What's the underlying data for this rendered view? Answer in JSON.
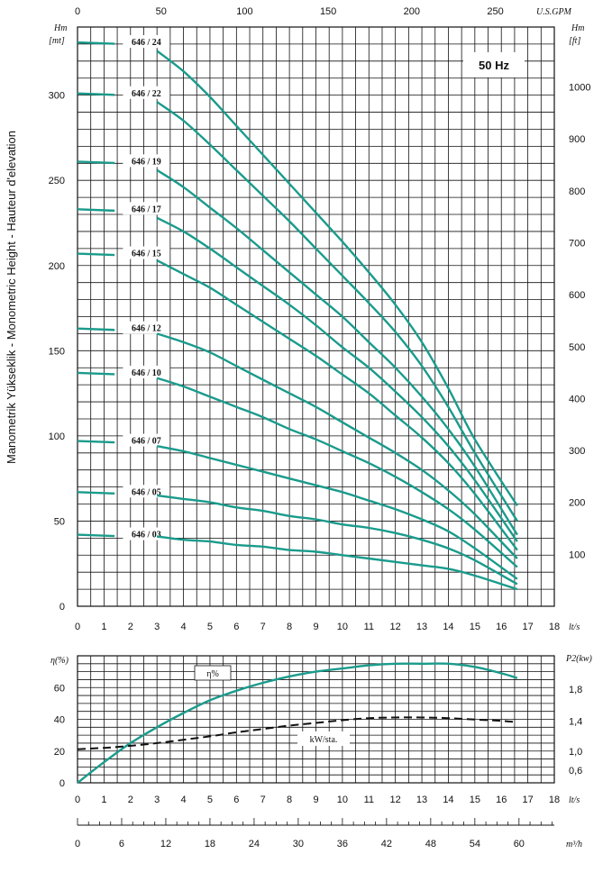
{
  "chart_data": [
    {
      "type": "line",
      "title": "",
      "frequency_label": "50 Hz",
      "ylabel_side": "Manometrik Yükseklik - Monometric Height - Hauteur d'elevation",
      "ylabel_left": [
        "Hm",
        "[mt]"
      ],
      "ylabel_right": [
        "Hm",
        "[ft]"
      ],
      "xlabel_top": "U.S.GPM",
      "xlabel_bottom": "lt/s",
      "xlim": [
        0,
        18
      ],
      "ylim": [
        0,
        340
      ],
      "x_ticks": [
        0,
        1,
        2,
        3,
        4,
        5,
        6,
        7,
        8,
        9,
        10,
        11,
        12,
        13,
        14,
        15,
        16,
        17,
        18
      ],
      "y_ticks": [
        0,
        50,
        100,
        150,
        200,
        250,
        300
      ],
      "gpm_ticks": [
        0,
        50,
        100,
        150,
        200,
        250
      ],
      "ft_ticks": [
        100,
        200,
        300,
        400,
        500,
        600,
        700,
        800,
        900,
        1000
      ],
      "grid": true,
      "series": [
        {
          "name": "646 / 24",
          "lead_y": 331,
          "points": [
            [
              3.0,
              326
            ],
            [
              4,
              314
            ],
            [
              5,
              299
            ],
            [
              6,
              282
            ],
            [
              7,
              265
            ],
            [
              8,
              248
            ],
            [
              9,
              231
            ],
            [
              10,
              214
            ],
            [
              11,
              196
            ],
            [
              12,
              177
            ],
            [
              13,
              155
            ],
            [
              14,
              128
            ],
            [
              15,
              98
            ],
            [
              16.6,
              59
            ]
          ]
        },
        {
          "name": "646 / 22",
          "lead_y": 301,
          "points": [
            [
              3.0,
              296
            ],
            [
              4,
              285
            ],
            [
              5,
              271
            ],
            [
              6,
              256
            ],
            [
              7,
              241
            ],
            [
              8,
              226
            ],
            [
              9,
              210
            ],
            [
              10,
              194
            ],
            [
              11,
              178
            ],
            [
              12,
              161
            ],
            [
              13,
              141
            ],
            [
              14,
              117
            ],
            [
              15,
              90
            ],
            [
              16.6,
              50
            ]
          ]
        },
        {
          "name": "646 / 19",
          "lead_y": 261,
          "points": [
            [
              3.0,
              256
            ],
            [
              4,
              246
            ],
            [
              5,
              234
            ],
            [
              6,
              222
            ],
            [
              7,
              209
            ],
            [
              8,
              196
            ],
            [
              9,
              183
            ],
            [
              10,
              170
            ],
            [
              11,
              155
            ],
            [
              12,
              140
            ],
            [
              13,
              123
            ],
            [
              14,
              104
            ],
            [
              15,
              82
            ],
            [
              16.6,
              42
            ]
          ]
        },
        {
          "name": "646 / 17",
          "lead_y": 233,
          "points": [
            [
              3.0,
              228
            ],
            [
              4,
              220
            ],
            [
              5,
              210
            ],
            [
              6,
              199
            ],
            [
              7,
              188
            ],
            [
              8,
              177
            ],
            [
              9,
              165
            ],
            [
              10,
              152
            ],
            [
              11,
              140
            ],
            [
              12,
              126
            ],
            [
              13,
              111
            ],
            [
              14,
              94
            ],
            [
              15,
              74
            ],
            [
              16.6,
              38
            ]
          ]
        },
        {
          "name": "646 / 15",
          "lead_y": 207,
          "points": [
            [
              3.0,
              203
            ],
            [
              4,
              195
            ],
            [
              5,
              187
            ],
            [
              6,
              177
            ],
            [
              7,
              167
            ],
            [
              8,
              157
            ],
            [
              9,
              147
            ],
            [
              10,
              136
            ],
            [
              11,
              125
            ],
            [
              12,
              112
            ],
            [
              13,
              99
            ],
            [
              14,
              84
            ],
            [
              15,
              66
            ],
            [
              16.6,
              33
            ]
          ]
        },
        {
          "name": "646 / 12",
          "lead_y": 163,
          "points": [
            [
              3.0,
              160
            ],
            [
              4,
              155
            ],
            [
              5,
              149
            ],
            [
              6,
              141
            ],
            [
              7,
              133
            ],
            [
              8,
              125
            ],
            [
              9,
              117
            ],
            [
              10,
              108
            ],
            [
              11,
              99
            ],
            [
              12,
              90
            ],
            [
              13,
              80
            ],
            [
              14,
              68
            ],
            [
              15,
              54
            ],
            [
              16.6,
              28
            ]
          ]
        },
        {
          "name": "646 / 10",
          "lead_y": 137,
          "points": [
            [
              3.0,
              134
            ],
            [
              4,
              129
            ],
            [
              5,
              123
            ],
            [
              6,
              117
            ],
            [
              7,
              111
            ],
            [
              8,
              104
            ],
            [
              9,
              98
            ],
            [
              10,
              91
            ],
            [
              11,
              84
            ],
            [
              12,
              76
            ],
            [
              13,
              67
            ],
            [
              14,
              57
            ],
            [
              15,
              45
            ],
            [
              16.6,
              23
            ]
          ]
        },
        {
          "name": "646 / 07",
          "lead_y": 97,
          "points": [
            [
              3.0,
              94
            ],
            [
              4,
              91
            ],
            [
              5,
              87
            ],
            [
              6,
              83
            ],
            [
              7,
              79
            ],
            [
              8,
              75
            ],
            [
              9,
              71
            ],
            [
              10,
              67
            ],
            [
              11,
              62
            ],
            [
              12,
              57
            ],
            [
              13,
              51
            ],
            [
              14,
              44
            ],
            [
              15,
              34
            ],
            [
              16.6,
              16
            ]
          ]
        },
        {
          "name": "646 / 05",
          "lead_y": 67,
          "points": [
            [
              3.0,
              65
            ],
            [
              4,
              63
            ],
            [
              5,
              61
            ],
            [
              6,
              58
            ],
            [
              7,
              56
            ],
            [
              8,
              53
            ],
            [
              9,
              51
            ],
            [
              10,
              48
            ],
            [
              11,
              46
            ],
            [
              12,
              43
            ],
            [
              13,
              39
            ],
            [
              14,
              34
            ],
            [
              15,
              27
            ],
            [
              16.6,
              13
            ]
          ]
        },
        {
          "name": "646 / 03",
          "lead_y": 42,
          "points": [
            [
              3.0,
              41
            ],
            [
              4,
              39
            ],
            [
              5,
              38
            ],
            [
              6,
              36
            ],
            [
              7,
              35
            ],
            [
              8,
              33
            ],
            [
              9,
              32
            ],
            [
              10,
              30
            ],
            [
              11,
              28
            ],
            [
              12,
              26
            ],
            [
              13,
              24
            ],
            [
              14,
              22
            ],
            [
              15,
              18
            ],
            [
              16.6,
              10
            ]
          ]
        }
      ]
    },
    {
      "type": "line",
      "title": "",
      "ylabel_left": "η(%)",
      "ylabel_right": "P2(kw)",
      "xlabel_bottom": "lt/s",
      "xlabel_m3h": "m³/h",
      "xlim": [
        0,
        18
      ],
      "ylim": [
        0,
        80
      ],
      "y_ticks": [
        0,
        20,
        40,
        60
      ],
      "kw_ticks": [
        "0,6",
        "1,0",
        "1,4",
        "1,8"
      ],
      "x_ticks": [
        0,
        1,
        2,
        3,
        4,
        5,
        6,
        7,
        8,
        9,
        10,
        11,
        12,
        13,
        14,
        15,
        16,
        17,
        18
      ],
      "m3h_ticks": [
        0,
        6,
        12,
        18,
        24,
        30,
        36,
        42,
        48,
        54,
        60
      ],
      "grid": true,
      "efficiency_label": "η%",
      "power_label": "kW/sta.",
      "series": [
        {
          "name": "η%",
          "points": [
            [
              0,
              0
            ],
            [
              1,
              13
            ],
            [
              2,
              25
            ],
            [
              3,
              35
            ],
            [
              4,
              44
            ],
            [
              5,
              52
            ],
            [
              6,
              58
            ],
            [
              7,
              63
            ],
            [
              8,
              67
            ],
            [
              9,
              70
            ],
            [
              10,
              72
            ],
            [
              11,
              74
            ],
            [
              12,
              75
            ],
            [
              13,
              75
            ],
            [
              14,
              75
            ],
            [
              15,
              73
            ],
            [
              16,
              69
            ],
            [
              16.6,
              66
            ]
          ]
        },
        {
          "name": "kW/sta.",
          "points": [
            [
              0,
              0.91
            ],
            [
              1,
              0.93
            ],
            [
              2,
              0.96
            ],
            [
              3,
              1.0
            ],
            [
              4,
              1.05
            ],
            [
              5,
              1.1
            ],
            [
              6,
              1.16
            ],
            [
              7,
              1.21
            ],
            [
              8,
              1.26
            ],
            [
              9,
              1.3
            ],
            [
              10,
              1.34
            ],
            [
              11,
              1.37
            ],
            [
              12,
              1.38
            ],
            [
              13,
              1.38
            ],
            [
              14,
              1.37
            ],
            [
              15,
              1.35
            ],
            [
              16,
              1.33
            ],
            [
              16.6,
              1.31
            ]
          ]
        }
      ]
    }
  ]
}
